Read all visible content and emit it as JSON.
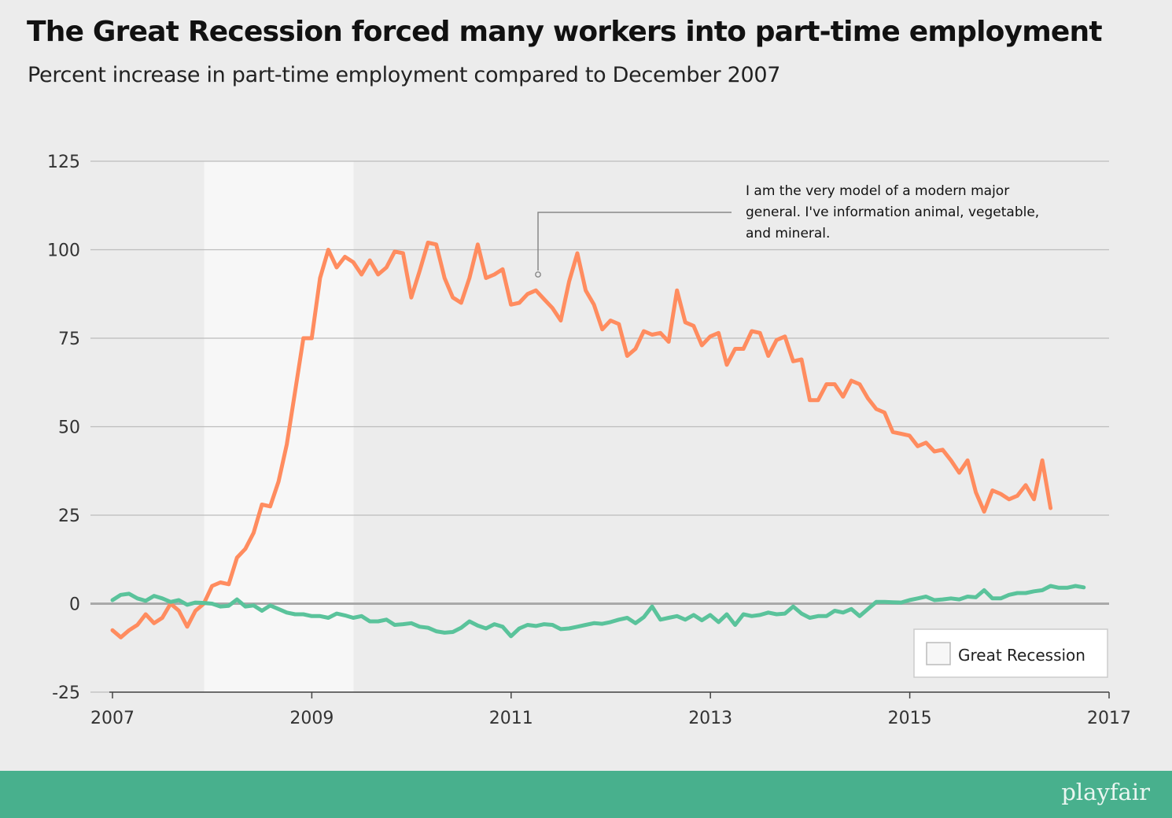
{
  "header": {
    "title": "The Great Recession forced many workers into part-time employment",
    "subtitle": "Percent increase in part-time employment compared to December 2007"
  },
  "footer": {
    "brand": "playfair"
  },
  "colors": {
    "background": "#ececec",
    "recession_band": "#f7f7f7",
    "series_orange": "#ff8c5f",
    "series_green": "#5ac39b",
    "footer": "#48b08d",
    "gridline": "#bdbdbd",
    "zero_line": "#a9a9a9"
  },
  "chart_data": {
    "type": "line",
    "title": "The Great Recession forced many workers into part-time employment",
    "subtitle": "Percent increase in part-time employment compared to December 2007",
    "xlabel": "",
    "ylabel": "",
    "xlim": [
      2007,
      2017
    ],
    "ylim": [
      -25,
      125
    ],
    "x_ticks": [
      "2007",
      "2009",
      "2011",
      "2013",
      "2015",
      "2017"
    ],
    "y_ticks": [
      "-25",
      "0",
      "25",
      "50",
      "75",
      "100",
      "125"
    ],
    "grid": "horizontal",
    "legend": {
      "position": "bottom-right",
      "entries": [
        {
          "label": "Great Recession",
          "swatch": "recession_band"
        }
      ]
    },
    "shaded_region": {
      "label": "Great Recession",
      "x_start": 2007.92,
      "x_end": 2009.42
    },
    "annotation": {
      "lines": [
        "I am the very model of a modern major",
        "general. I've information animal, vegetable,",
        "and mineral."
      ],
      "point": {
        "x": 2011.27,
        "y": 93
      }
    },
    "x_start": 2007.0,
    "x_step": 0.0833,
    "series": [
      {
        "color": "#ff8c5f",
        "values": [
          -7.5,
          -9.5,
          -7.5,
          -6,
          -3,
          -5.5,
          -4,
          0,
          -2,
          -6.5,
          -2,
          0,
          5,
          6,
          5.5,
          13,
          15.5,
          20,
          28,
          27.5,
          34.5,
          45,
          60,
          75,
          75,
          92,
          100,
          95,
          98,
          96.5,
          93,
          97,
          93,
          95,
          99.5,
          99,
          86.5,
          94,
          102,
          101.5,
          92,
          86.5,
          85,
          92,
          101.5,
          92,
          93,
          94.5,
          84.5,
          85,
          87.5,
          88.5,
          86,
          83.5,
          80,
          91,
          99,
          88.5,
          84.5,
          77.5,
          80,
          79,
          70,
          72,
          77,
          76,
          76.5,
          74,
          88.5,
          79.5,
          78.5,
          73,
          75.5,
          76.5,
          67.5,
          72,
          72,
          77,
          76.5,
          70,
          74.5,
          75.5,
          68.5,
          69,
          57.5,
          57.5,
          62,
          62,
          58.5,
          63,
          62,
          58,
          55,
          54,
          48.5,
          48,
          47.5,
          44.5,
          45.5,
          43,
          43.5,
          40.5,
          37,
          40.5,
          31.5,
          26,
          32,
          31,
          29.5,
          30.5,
          33.5,
          29.5,
          40.5,
          27
        ]
      },
      {
        "color": "#5ac39b",
        "values": [
          1,
          2.5,
          2.8,
          1.5,
          0.8,
          2.2,
          1.5,
          0.5,
          1,
          -0.3,
          0.3,
          0.2,
          0,
          -0.8,
          -0.6,
          1.2,
          -0.8,
          -0.5,
          -2,
          -0.5,
          -1.5,
          -2.5,
          -3,
          -3,
          -3.5,
          -3.5,
          -4,
          -2.8,
          -3.3,
          -4,
          -3.5,
          -5,
          -5,
          -4.5,
          -6,
          -5.8,
          -5.5,
          -6.5,
          -6.8,
          -7.8,
          -8.2,
          -8,
          -6.8,
          -5,
          -6.2,
          -7,
          -5.8,
          -6.5,
          -9.2,
          -7,
          -6,
          -6.3,
          -5.8,
          -6,
          -7.2,
          -7,
          -6.5,
          -6,
          -5.5,
          -5.7,
          -5.2,
          -4.5,
          -4,
          -5.5,
          -3.8,
          -0.8,
          -4.5,
          -4,
          -3.5,
          -4.5,
          -3.2,
          -4.7,
          -3.2,
          -5.2,
          -3,
          -6,
          -3,
          -3.5,
          -3.2,
          -2.5,
          -3,
          -2.8,
          -0.8,
          -2.8,
          -4,
          -3.5,
          -3.5,
          -2,
          -2.5,
          -1.5,
          -3.5,
          -1.5,
          0.5,
          0.5,
          0.4,
          0.3,
          1,
          1.5,
          2,
          1,
          1.2,
          1.5,
          1.2,
          2,
          1.8,
          3.8,
          1.5,
          1.5,
          2.5,
          3,
          3,
          3.5,
          3.8,
          5,
          4.5,
          4.5,
          5,
          4.6
        ]
      }
    ]
  }
}
